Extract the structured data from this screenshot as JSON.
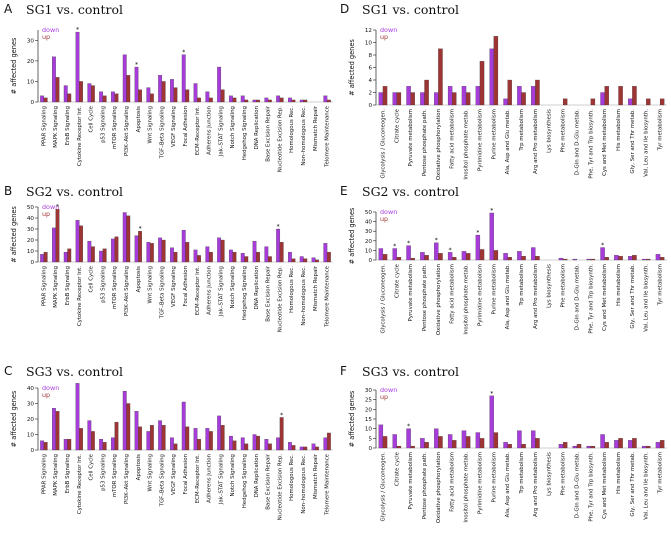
{
  "colors": {
    "down": "#a63cd9",
    "up": "#9e3535"
  },
  "legend": {
    "down": "down",
    "up": "up"
  },
  "ylabel": "# affected genes",
  "chart_data": [
    {
      "id": "A",
      "type": "bar",
      "title": "SG1 vs. control",
      "ylabel": "# affected genes",
      "ylim": [
        0,
        35
      ],
      "yticks": [
        0,
        10,
        20,
        30
      ],
      "categories": [
        "PPAR Signaling",
        "MAPK Signaling",
        "ErbB Signaling",
        "Cytokine Receptor Int.",
        "Cell Cycle",
        "p53 Signaling",
        "mTOR Signaling",
        "PI3K–Akt Signaling",
        "Apoptosis",
        "Wnt Signaling",
        "TGF–Beta Signaling",
        "VEGF Signaling",
        "Focal Adhesion",
        "ECM–Receptor Int.",
        "Adherens Junction",
        "Jak–STAT Signaling",
        "Notch Signaling",
        "Hedgehog Signaling",
        "DNA Replication",
        "Base Excision Repair",
        "Nucleotide Excision Rep.",
        "Homologous Rec.",
        "Non–homologous Rec.",
        "Mismatch Repair",
        "Telomere Maintenance"
      ],
      "series": [
        {
          "name": "down",
          "values": [
            3,
            22,
            8,
            34,
            9,
            5,
            5,
            23,
            17,
            7,
            13,
            11,
            23,
            9,
            5,
            17,
            3,
            3,
            1,
            2,
            3,
            2,
            1,
            0,
            3
          ]
        },
        {
          "name": "up",
          "values": [
            2,
            12,
            4,
            10,
            8,
            3,
            4,
            13,
            6,
            4,
            10,
            7,
            6,
            2,
            2,
            6,
            2,
            1,
            1,
            1,
            2,
            1,
            1,
            0,
            1
          ]
        }
      ],
      "significant": [
        {
          "category": "Cytokine Receptor Int.",
          "series": "down"
        },
        {
          "category": "Apoptosis",
          "series": "down"
        },
        {
          "category": "Focal Adhesion",
          "series": "down"
        }
      ]
    },
    {
      "id": "B",
      "type": "bar",
      "title": "SG2 vs. control",
      "ylabel": "# affected genes",
      "ylim": [
        0,
        50
      ],
      "yticks": [
        0,
        10,
        20,
        30,
        40,
        50
      ],
      "categories": [
        "PPAR Signaling",
        "MAPK Signaling",
        "ErbB Signaling",
        "Cytokine Receptor Int.",
        "Cell Cycle",
        "p53 Signaling",
        "mTOR Signaling",
        "PI3K–Akt Signaling",
        "Apoptosis",
        "Wnt Signaling",
        "TGF–Beta Signaling",
        "VEGF Signaling",
        "Focal Adhesion",
        "ECM–Receptor Int.",
        "Adherens Junction",
        "Jak–STAT Signaling",
        "Notch Signaling",
        "Hedgehog Signaling",
        "DNA Replication",
        "Base Excision Repair",
        "Nucleotide Excision Rep.",
        "Homologous Rec.",
        "Non–homologous Rec.",
        "Mismatch Repair",
        "Telomere Maintenance"
      ],
      "series": [
        {
          "name": "down",
          "values": [
            7,
            31,
            9,
            38,
            19,
            10,
            21,
            45,
            24,
            18,
            22,
            13,
            29,
            11,
            14,
            22,
            11,
            8,
            19,
            14,
            30,
            9,
            5,
            4,
            17
          ]
        },
        {
          "name": "up",
          "values": [
            9,
            48,
            12,
            33,
            14,
            12,
            23,
            42,
            28,
            17,
            20,
            9,
            18,
            6,
            9,
            20,
            9,
            5,
            9,
            5,
            18,
            3,
            3,
            2,
            9
          ]
        }
      ],
      "significant": [
        {
          "category": "MAPK Signaling",
          "series": "up"
        },
        {
          "category": "Apoptosis",
          "series": "up"
        },
        {
          "category": "Nucleotide Excision Rep.",
          "series": "down"
        }
      ]
    },
    {
      "id": "C",
      "type": "bar",
      "title": "SG3 vs. control",
      "ylabel": "# affected genes",
      "ylim": [
        0,
        40
      ],
      "yticks": [
        0,
        10,
        20,
        30,
        40
      ],
      "categories": [
        "PPAR Signaling",
        "MAPK Signaling",
        "ErbB Signaling",
        "Cytokine Receptor Int.",
        "Cell Cycle",
        "p53 Signaling",
        "mTOR Signaling",
        "PI3K–Akt Signaling",
        "Apoptosis",
        "Wnt Signaling",
        "TGF–Beta Signaling",
        "VEGF Signaling",
        "Focal Adhesion",
        "ECM–Receptor Int.",
        "Adherens Junction",
        "Jak–STAT Signaling",
        "Notch Signaling",
        "Hedgehog Signaling",
        "DNA Replication",
        "Base Excision Repair",
        "Nucleotide Excision Rep.",
        "Homologous Rec.",
        "Non–homologous Rec.",
        "Mismatch Repair",
        "Telomere Maintenance"
      ],
      "series": [
        {
          "name": "down",
          "values": [
            6,
            27,
            7,
            43,
            19,
            7,
            8,
            38,
            25,
            12,
            19,
            8,
            31,
            14,
            14,
            22,
            9,
            8,
            10,
            7,
            8,
            5,
            2,
            4,
            8
          ]
        },
        {
          "name": "up",
          "values": [
            5,
            25,
            7,
            14,
            12,
            5,
            18,
            30,
            15,
            16,
            16,
            4,
            15,
            7,
            12,
            16,
            6,
            4,
            9,
            4,
            21,
            3,
            2,
            2,
            11
          ]
        }
      ],
      "significant": [
        {
          "category": "Nucleotide Excision Rep.",
          "series": "up"
        }
      ]
    },
    {
      "id": "D",
      "type": "bar",
      "title": "SG1 vs. control",
      "ylabel": "# affected genes",
      "ylim": [
        0,
        12
      ],
      "yticks": [
        0,
        2,
        4,
        6,
        8,
        10,
        12
      ],
      "categories": [
        "Glycolysis / Gluconeogen.",
        "Citrate cycle",
        "Pyruvate metabolism",
        "Pentose phosphate path.",
        "Oxidative phosphorylation",
        "Fatty acid metabolism",
        "Inositol phosphate metab.",
        "Pyrimidine metabolism",
        "Purine metabolism",
        "Ala, Asp and Glu metab.",
        "Trp metabolism",
        "Arg and Pro metabolism",
        "Lys biosynthesis",
        "Phe metabolism",
        "D–Gln and D–Glu metab.",
        "Phe, Tyr and Trp biosynth.",
        "Cys and Met metabolism",
        "His metabolism",
        "Gly, Ser and Thr metab.",
        "Val, Leu and Ile biosynth.",
        "Tyr metabolism"
      ],
      "series": [
        {
          "name": "down",
          "values": [
            2,
            2,
            3,
            2,
            2,
            3,
            3,
            3,
            9,
            1,
            3,
            3,
            0,
            0,
            0,
            0,
            2,
            0,
            1,
            0,
            0
          ]
        },
        {
          "name": "up",
          "values": [
            3,
            2,
            2,
            4,
            9,
            2,
            2,
            7,
            11,
            4,
            2,
            4,
            0,
            1,
            0,
            1,
            3,
            3,
            3,
            1,
            1
          ]
        }
      ],
      "significant": []
    },
    {
      "id": "E",
      "type": "bar",
      "title": "SG2 vs. control",
      "ylabel": "# affected genes",
      "ylim": [
        0,
        50
      ],
      "yticks": [
        0,
        10,
        20,
        30,
        40,
        50
      ],
      "categories": [
        "Glycolysis / Gluconeogen.",
        "Citrate cycle",
        "Pyruvate metabolism",
        "Pentose phosphate path.",
        "Oxidative phosphorylation",
        "Fatty acid metabolism",
        "Inositol phosphate metab.",
        "Pyrimidine metabolism",
        "Purine metabolism",
        "Ala, Asp and Glu metab.",
        "Trp metabolism",
        "Arg and Pro metabolism",
        "Lys biosynthesis",
        "Phe metabolism",
        "D–Gln and D–Glu metab.",
        "Phe, Tyr and Trp biosynth.",
        "Cys and Met metabolism",
        "His metabolism",
        "Gly, Ser and Thr metab.",
        "Val, Leu and Ile biosynth.",
        "Tyr metabolism"
      ],
      "series": [
        {
          "name": "down",
          "values": [
            12,
            12,
            15,
            8,
            18,
            8,
            9,
            26,
            49,
            7,
            9,
            13,
            0,
            2,
            1,
            1,
            13,
            5,
            4,
            1,
            6
          ]
        },
        {
          "name": "up",
          "values": [
            6,
            3,
            2,
            5,
            7,
            3,
            7,
            11,
            10,
            3,
            4,
            4,
            0,
            1,
            0,
            1,
            3,
            4,
            5,
            1,
            3
          ]
        }
      ],
      "significant": [
        {
          "category": "Citrate cycle",
          "series": "down"
        },
        {
          "category": "Pyruvate metabolism",
          "series": "down"
        },
        {
          "category": "Oxidative phosphorylation",
          "series": "down"
        },
        {
          "category": "Fatty acid metabolism",
          "series": "down"
        },
        {
          "category": "Pyrimidine metabolism",
          "series": "down"
        },
        {
          "category": "Purine metabolism",
          "series": "down"
        },
        {
          "category": "Cys and Met metabolism",
          "series": "down"
        }
      ]
    },
    {
      "id": "F",
      "type": "bar",
      "title": "SG3 vs. control",
      "ylabel": "# affected genes",
      "ylim": [
        0,
        30
      ],
      "yticks": [
        0,
        5,
        10,
        15,
        20,
        25,
        30
      ],
      "categories": [
        "Glycolysis / Gluconeogen.",
        "Citrate cycle",
        "Pyruvate metabolism",
        "Pentose phosphate path.",
        "Oxidative phosphorylation",
        "Fatty acid metabolism",
        "Inositol phosphate metab.",
        "Pyrimidine metabolism",
        "Purine metabolism",
        "Ala, Asp and Glu metab.",
        "Trp metabolism",
        "Arg and Pro metabolism",
        "Lys biosynthesis",
        "Phe metabolism",
        "D–Gln and D–Glu metab.",
        "Phe, Tyr and Trp biosynth.",
        "Cys and Met metabolism",
        "His metabolism",
        "Gly, Ser and Thr metab.",
        "Val, Leu and Ile biosynth.",
        "Tyr metabolism"
      ],
      "series": [
        {
          "name": "down",
          "values": [
            12,
            7,
            10,
            5,
            10,
            7,
            9,
            8,
            27,
            3,
            9,
            9,
            0,
            2,
            1,
            1,
            7,
            4,
            4,
            1,
            3
          ]
        },
        {
          "name": "up",
          "values": [
            6,
            1,
            1,
            3,
            6,
            4,
            6,
            5,
            8,
            2,
            2,
            5,
            0,
            3,
            2,
            1,
            3,
            5,
            5,
            1,
            4
          ]
        }
      ],
      "significant": [
        {
          "category": "Pyruvate metabolism",
          "series": "down"
        },
        {
          "category": "Purine metabolism",
          "series": "down"
        }
      ]
    }
  ]
}
